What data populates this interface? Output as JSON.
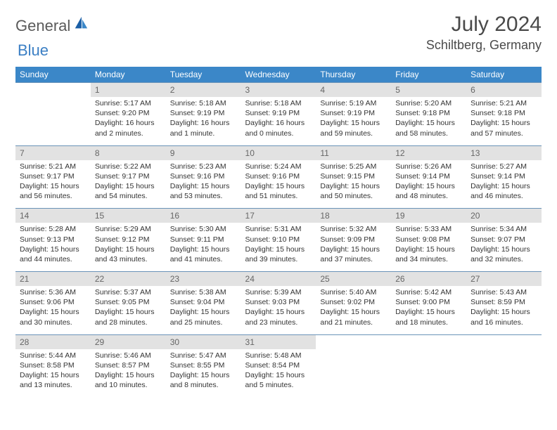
{
  "logo": {
    "part1": "General",
    "part2": "Blue"
  },
  "title": "July 2024",
  "location": "Schiltberg, Germany",
  "colors": {
    "header_bg": "#3b87c8",
    "header_text": "#ffffff",
    "daynum_bg": "#e2e2e2",
    "daynum_text": "#666666",
    "border": "#6a93b8",
    "logo_gray": "#5a5a5a",
    "logo_blue": "#3b7fc4"
  },
  "day_names": [
    "Sunday",
    "Monday",
    "Tuesday",
    "Wednesday",
    "Thursday",
    "Friday",
    "Saturday"
  ],
  "weeks": [
    {
      "nums": [
        "",
        "1",
        "2",
        "3",
        "4",
        "5",
        "6"
      ],
      "cells": [
        null,
        {
          "sr": "5:17 AM",
          "ss": "9:20 PM",
          "dl": "16 hours and 2 minutes."
        },
        {
          "sr": "5:18 AM",
          "ss": "9:19 PM",
          "dl": "16 hours and 1 minute."
        },
        {
          "sr": "5:18 AM",
          "ss": "9:19 PM",
          "dl": "16 hours and 0 minutes."
        },
        {
          "sr": "5:19 AM",
          "ss": "9:19 PM",
          "dl": "15 hours and 59 minutes."
        },
        {
          "sr": "5:20 AM",
          "ss": "9:18 PM",
          "dl": "15 hours and 58 minutes."
        },
        {
          "sr": "5:21 AM",
          "ss": "9:18 PM",
          "dl": "15 hours and 57 minutes."
        }
      ]
    },
    {
      "nums": [
        "7",
        "8",
        "9",
        "10",
        "11",
        "12",
        "13"
      ],
      "cells": [
        {
          "sr": "5:21 AM",
          "ss": "9:17 PM",
          "dl": "15 hours and 56 minutes."
        },
        {
          "sr": "5:22 AM",
          "ss": "9:17 PM",
          "dl": "15 hours and 54 minutes."
        },
        {
          "sr": "5:23 AM",
          "ss": "9:16 PM",
          "dl": "15 hours and 53 minutes."
        },
        {
          "sr": "5:24 AM",
          "ss": "9:16 PM",
          "dl": "15 hours and 51 minutes."
        },
        {
          "sr": "5:25 AM",
          "ss": "9:15 PM",
          "dl": "15 hours and 50 minutes."
        },
        {
          "sr": "5:26 AM",
          "ss": "9:14 PM",
          "dl": "15 hours and 48 minutes."
        },
        {
          "sr": "5:27 AM",
          "ss": "9:14 PM",
          "dl": "15 hours and 46 minutes."
        }
      ]
    },
    {
      "nums": [
        "14",
        "15",
        "16",
        "17",
        "18",
        "19",
        "20"
      ],
      "cells": [
        {
          "sr": "5:28 AM",
          "ss": "9:13 PM",
          "dl": "15 hours and 44 minutes."
        },
        {
          "sr": "5:29 AM",
          "ss": "9:12 PM",
          "dl": "15 hours and 43 minutes."
        },
        {
          "sr": "5:30 AM",
          "ss": "9:11 PM",
          "dl": "15 hours and 41 minutes."
        },
        {
          "sr": "5:31 AM",
          "ss": "9:10 PM",
          "dl": "15 hours and 39 minutes."
        },
        {
          "sr": "5:32 AM",
          "ss": "9:09 PM",
          "dl": "15 hours and 37 minutes."
        },
        {
          "sr": "5:33 AM",
          "ss": "9:08 PM",
          "dl": "15 hours and 34 minutes."
        },
        {
          "sr": "5:34 AM",
          "ss": "9:07 PM",
          "dl": "15 hours and 32 minutes."
        }
      ]
    },
    {
      "nums": [
        "21",
        "22",
        "23",
        "24",
        "25",
        "26",
        "27"
      ],
      "cells": [
        {
          "sr": "5:36 AM",
          "ss": "9:06 PM",
          "dl": "15 hours and 30 minutes."
        },
        {
          "sr": "5:37 AM",
          "ss": "9:05 PM",
          "dl": "15 hours and 28 minutes."
        },
        {
          "sr": "5:38 AM",
          "ss": "9:04 PM",
          "dl": "15 hours and 25 minutes."
        },
        {
          "sr": "5:39 AM",
          "ss": "9:03 PM",
          "dl": "15 hours and 23 minutes."
        },
        {
          "sr": "5:40 AM",
          "ss": "9:02 PM",
          "dl": "15 hours and 21 minutes."
        },
        {
          "sr": "5:42 AM",
          "ss": "9:00 PM",
          "dl": "15 hours and 18 minutes."
        },
        {
          "sr": "5:43 AM",
          "ss": "8:59 PM",
          "dl": "15 hours and 16 minutes."
        }
      ]
    },
    {
      "nums": [
        "28",
        "29",
        "30",
        "31",
        "",
        "",
        ""
      ],
      "cells": [
        {
          "sr": "5:44 AM",
          "ss": "8:58 PM",
          "dl": "15 hours and 13 minutes."
        },
        {
          "sr": "5:46 AM",
          "ss": "8:57 PM",
          "dl": "15 hours and 10 minutes."
        },
        {
          "sr": "5:47 AM",
          "ss": "8:55 PM",
          "dl": "15 hours and 8 minutes."
        },
        {
          "sr": "5:48 AM",
          "ss": "8:54 PM",
          "dl": "15 hours and 5 minutes."
        },
        null,
        null,
        null
      ]
    }
  ],
  "labels": {
    "sunrise": "Sunrise: ",
    "sunset": "Sunset: ",
    "daylight": "Daylight: "
  }
}
